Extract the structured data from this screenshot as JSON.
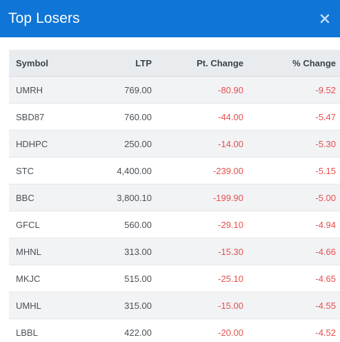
{
  "modal": {
    "title": "Top Losers",
    "close_icon": "close-icon"
  },
  "table": {
    "headers": {
      "symbol": "Symbol",
      "ltp": "LTP",
      "pt_change": "Pt. Change",
      "pct_change": "% Change"
    },
    "rows": [
      {
        "symbol": "UMRH",
        "ltp": "769.00",
        "pt_change": "-80.90",
        "pct_change": "-9.52"
      },
      {
        "symbol": "SBD87",
        "ltp": "760.00",
        "pt_change": "-44.00",
        "pct_change": "-5.47"
      },
      {
        "symbol": "HDHPC",
        "ltp": "250.00",
        "pt_change": "-14.00",
        "pct_change": "-5.30"
      },
      {
        "symbol": "STC",
        "ltp": "4,400.00",
        "pt_change": "-239.00",
        "pct_change": "-5.15"
      },
      {
        "symbol": "BBC",
        "ltp": "3,800.10",
        "pt_change": "-199.90",
        "pct_change": "-5.00"
      },
      {
        "symbol": "GFCL",
        "ltp": "560.00",
        "pt_change": "-29.10",
        "pct_change": "-4.94"
      },
      {
        "symbol": "MHNL",
        "ltp": "313.00",
        "pt_change": "-15.30",
        "pct_change": "-4.66"
      },
      {
        "symbol": "MKJC",
        "ltp": "515.00",
        "pt_change": "-25.10",
        "pct_change": "-4.65"
      },
      {
        "symbol": "UMHL",
        "ltp": "315.00",
        "pt_change": "-15.00",
        "pct_change": "-4.55"
      },
      {
        "symbol": "LBBL",
        "ltp": "422.00",
        "pt_change": "-20.00",
        "pct_change": "-4.52"
      }
    ]
  },
  "colors": {
    "header_bg": "#0f75d6",
    "negative": "#e4504e",
    "table_head_bg": "#e9ecef",
    "row_alt_bg": "#f2f3f5"
  }
}
